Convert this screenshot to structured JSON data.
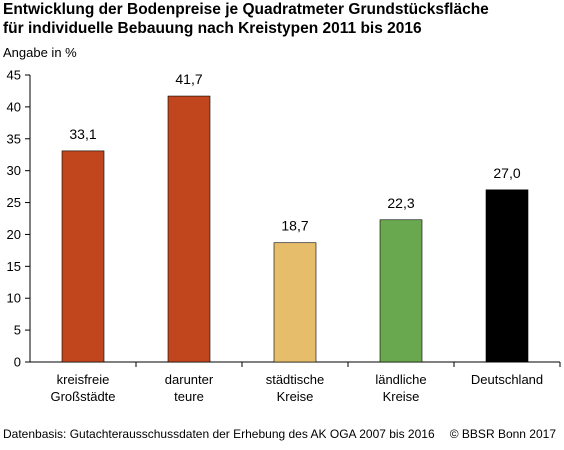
{
  "title_line1": "Entwicklung der Bodenpreise je Quadratmeter Grundstücksfläche",
  "title_line2": "für individuelle Bebauung nach Kreistypen 2011 bis 2016",
  "footer_source": "Datenbasis: Gutachterausschussdaten der Erhebung des AK OGA 2007 bis 2016",
  "footer_copyright": "© BBSR Bonn 2017",
  "chart_data": {
    "type": "bar",
    "title": "Entwicklung der Bodenpreise je Quadratmeter Grundstücksfläche für individuelle Bebauung nach Kreistypen 2011 bis 2016",
    "ylabel": "Angabe in %",
    "xlabel": "",
    "ylim": [
      0,
      45
    ],
    "yticks": [
      0,
      5,
      10,
      15,
      20,
      25,
      30,
      35,
      40,
      45
    ],
    "grid": false,
    "categories": [
      [
        "kreisfreie",
        "Großstädte"
      ],
      [
        "darunter",
        "teure"
      ],
      [
        "städtische",
        "Kreise"
      ],
      [
        "ländliche",
        "Kreise"
      ],
      [
        "Deutschland"
      ]
    ],
    "values": [
      33.1,
      41.7,
      18.7,
      22.3,
      27.0
    ],
    "value_labels": [
      "33,1",
      "41,7",
      "18,7",
      "22,3",
      "27,0"
    ],
    "colors": [
      "#c1461e",
      "#c1461e",
      "#e6bd6a",
      "#6aa84f",
      "#000000"
    ]
  }
}
